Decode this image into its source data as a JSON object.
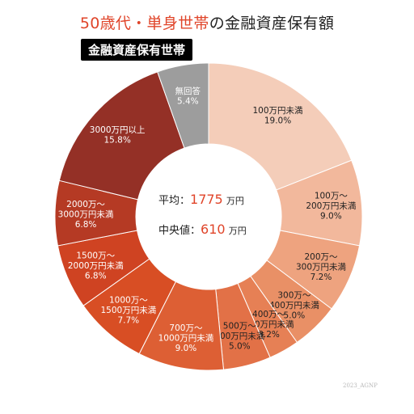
{
  "header": {
    "title_accent": "50歳代・単身世帯",
    "title_rest": "の金融資産保有額",
    "badge": "金融資産保有世帯"
  },
  "center": {
    "mean_label": "平均：",
    "mean_value": "1775",
    "median_label": "中央値：",
    "median_value": "610",
    "unit": "万円"
  },
  "credit": "2023_AGNP",
  "colors": {
    "accent": "#e0452a",
    "badge_bg": "#000000",
    "no_answer": "#9d9d9d"
  },
  "chart_data": {
    "type": "pie",
    "donut": true,
    "start": "top, clockwise",
    "slices": [
      {
        "label_lines": [
          "100万円未満"
        ],
        "value": 19.0,
        "display": "19.0%",
        "color": "#f4cdb9",
        "label_color": "#222222"
      },
      {
        "label_lines": [
          "100万～",
          "200万円未満"
        ],
        "value": 9.0,
        "display": "9.0%",
        "color": "#f2b89c",
        "label_color": "#222222"
      },
      {
        "label_lines": [
          "200万～",
          "300万円未満"
        ],
        "value": 7.2,
        "display": "7.2%",
        "color": "#eea37f",
        "label_color": "#222222"
      },
      {
        "label_lines": [
          "300万～",
          "400万円未満"
        ],
        "value": 5.0,
        "display": "5.0%",
        "color": "#e99066",
        "label_color": "#222222"
      },
      {
        "label_lines": [
          "400万～",
          "500万円未満"
        ],
        "value": 3.2,
        "display": "3.2%",
        "color": "#e68055",
        "label_color": "#222222"
      },
      {
        "label_lines": [
          "500万～",
          "700万円未満"
        ],
        "value": 5.0,
        "display": "5.0%",
        "color": "#e27147",
        "label_color": "#222222"
      },
      {
        "label_lines": [
          "700万～",
          "1000万円未満"
        ],
        "value": 9.0,
        "display": "9.0%",
        "color": "#dd5f34",
        "label_color": "#ffffff"
      },
      {
        "label_lines": [
          "1000万～",
          "1500万円未満"
        ],
        "value": 7.7,
        "display": "7.7%",
        "color": "#d84e24",
        "label_color": "#ffffff"
      },
      {
        "label_lines": [
          "1500万～",
          "2000万円未満"
        ],
        "value": 6.8,
        "display": "6.8%",
        "color": "#cf4322",
        "label_color": "#ffffff"
      },
      {
        "label_lines": [
          "2000万～",
          "3000万円未満"
        ],
        "value": 6.8,
        "display": "6.8%",
        "color": "#b53a24",
        "label_color": "#ffffff"
      },
      {
        "label_lines": [
          "3000万円以上"
        ],
        "value": 15.8,
        "display": "15.8%",
        "color": "#943026",
        "label_color": "#ffffff"
      },
      {
        "label_lines": [
          "無回答"
        ],
        "value": 5.4,
        "display": "5.4%",
        "color": "#9d9d9d",
        "label_color": "#ffffff"
      }
    ]
  }
}
